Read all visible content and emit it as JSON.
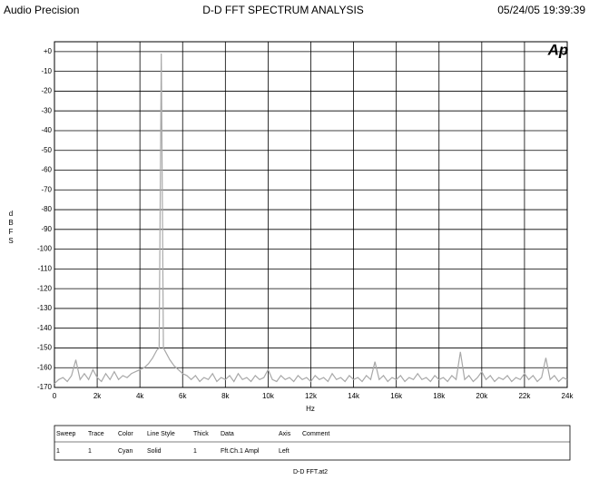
{
  "header": {
    "left": "Audio Precision",
    "right": "05/24/05 19:39:39"
  },
  "logo": "Ap",
  "table": {
    "columns": [
      "Sweep",
      "Trace",
      "Color",
      "Line Style",
      "Thick",
      "Data",
      "Axis",
      "Comment"
    ],
    "rows": [
      [
        "1",
        "1",
        "Cyan",
        "Solid",
        "1",
        "Fft.Ch.1 Ampl",
        "Left"
      ]
    ]
  },
  "footer": "D-D FFT.at2",
  "chart_data": {
    "type": "line",
    "title": "D-D FFT SPECTRUM ANALYSIS",
    "xlabel": "Hz",
    "ylabel": "dBFS",
    "xlim": [
      0,
      24000
    ],
    "ylim": [
      -170,
      5
    ],
    "xticks": [
      0,
      {
        "value": 2000,
        "label": "2k"
      },
      {
        "value": 4000,
        "label": "4k"
      },
      {
        "value": 6000,
        "label": "6k"
      },
      {
        "value": 8000,
        "label": "8k"
      },
      {
        "value": 10000,
        "label": "10k"
      },
      {
        "value": 12000,
        "label": "12k"
      },
      {
        "value": 14000,
        "label": "14k"
      },
      {
        "value": 16000,
        "label": "16k"
      },
      {
        "value": 18000,
        "label": "18k"
      },
      {
        "value": 20000,
        "label": "20k"
      },
      {
        "value": 22000,
        "label": "22k"
      },
      {
        "value": 24000,
        "label": "24k"
      }
    ],
    "yticks": [
      {
        "value": 0,
        "label": "+0"
      },
      -10,
      -20,
      -30,
      -40,
      -50,
      -60,
      -70,
      -80,
      -90,
      -100,
      -110,
      -120,
      -130,
      -140,
      -150,
      -160,
      -170
    ],
    "grid": true,
    "x": [
      0,
      200,
      400,
      600,
      800,
      1000,
      1200,
      1400,
      1600,
      1800,
      2000,
      2200,
      2400,
      2600,
      2800,
      3000,
      3200,
      3400,
      3600,
      3800,
      4000,
      4200,
      4400,
      4600,
      4800,
      4900,
      5000,
      5100,
      5200,
      5400,
      5600,
      5800,
      6000,
      6200,
      6400,
      6600,
      6800,
      7000,
      7200,
      7400,
      7600,
      7800,
      8000,
      8200,
      8400,
      8600,
      8800,
      9000,
      9200,
      9400,
      9600,
      9800,
      10000,
      10200,
      10400,
      10600,
      10800,
      11000,
      11200,
      11400,
      11600,
      11800,
      12000,
      12200,
      12400,
      12600,
      12800,
      13000,
      13200,
      13400,
      13600,
      13800,
      14000,
      14200,
      14400,
      14600,
      14800,
      15000,
      15200,
      15400,
      15600,
      15800,
      16000,
      16200,
      16400,
      16600,
      16800,
      17000,
      17200,
      17400,
      17600,
      17800,
      18000,
      18200,
      18400,
      18600,
      18800,
      19000,
      19200,
      19400,
      19600,
      19800,
      20000,
      20200,
      20400,
      20600,
      20800,
      21000,
      21200,
      21400,
      21600,
      21800,
      22000,
      22200,
      22400,
      22600,
      22800,
      23000,
      23200,
      23400,
      23600,
      23800,
      24000
    ],
    "series": [
      {
        "color": "#a8a8a8",
        "values": [
          -168,
          -166,
          -165,
          -167,
          -164,
          -156,
          -166,
          -163,
          -166,
          -161,
          -165,
          -167,
          -163,
          -166,
          -162,
          -166,
          -164,
          -165,
          -163,
          -162,
          -161,
          -160,
          -158,
          -155,
          -151,
          -150,
          -1,
          -150,
          -152,
          -156,
          -159,
          -161,
          -163,
          -164,
          -166,
          -164,
          -167,
          -165,
          -166,
          -163,
          -167,
          -165,
          -166,
          -164,
          -167,
          -163,
          -166,
          -165,
          -167,
          -164,
          -166,
          -165,
          -161,
          -166,
          -167,
          -164,
          -166,
          -165,
          -167,
          -164,
          -166,
          -165,
          -167,
          -164,
          -166,
          -165,
          -167,
          -163,
          -166,
          -165,
          -167,
          -164,
          -166,
          -165,
          -167,
          -164,
          -166,
          -157,
          -166,
          -164,
          -167,
          -165,
          -166,
          -164,
          -167,
          -165,
          -166,
          -163,
          -166,
          -165,
          -167,
          -164,
          -166,
          -165,
          -167,
          -164,
          -166,
          -152,
          -166,
          -164,
          -167,
          -165,
          -162,
          -166,
          -164,
          -167,
          -165,
          -166,
          -164,
          -167,
          -165,
          -166,
          -163,
          -166,
          -164,
          -167,
          -165,
          -155,
          -166,
          -164,
          -167,
          -165,
          -166
        ]
      }
    ]
  }
}
